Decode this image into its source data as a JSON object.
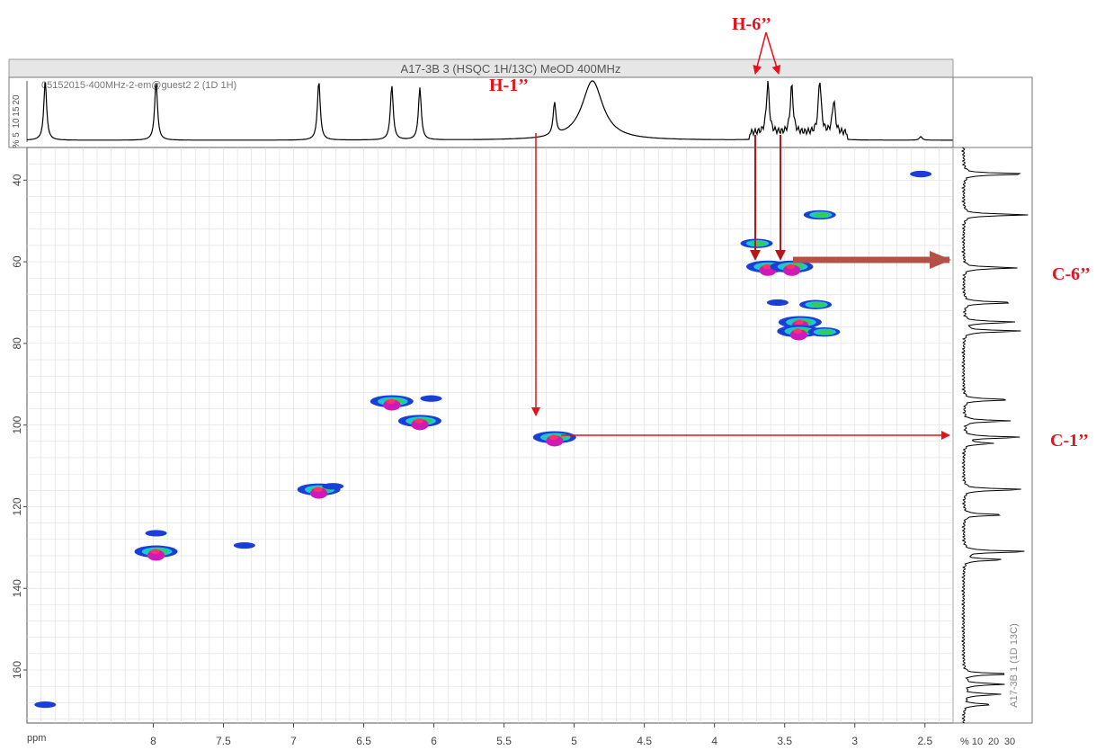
{
  "window": {
    "title": "A17-3B 3 (HSQC 1H/13C) MeOD 400MHz",
    "top_trace_label": "05152015-400MHz-2-em@guest2 2 (1D 1H)",
    "side_trace_label": "A17-3B 1 (1D 13C)"
  },
  "colors": {
    "annotation": "#e8111b",
    "arrow_dark": "#b01a1a",
    "arrow_c6": "#b55045",
    "grid": "#dddddd",
    "contour_blue": "#1a3fd6",
    "contour_cyan": "#1ec8d0",
    "contour_green": "#33cc55",
    "contour_magenta": "#d01ab8",
    "contour_pink": "#ff3070"
  },
  "annotations": [
    {
      "id": "h1",
      "text": "H-1’’"
    },
    {
      "id": "h6",
      "text": "H-6’’"
    },
    {
      "id": "c6",
      "text": "C-6’’"
    },
    {
      "id": "c1",
      "text": "C-1’’"
    }
  ],
  "chart_data": {
    "type": "heatmap",
    "title": "A17-3B 3 (HSQC 1H/13C) MeOD 400MHz",
    "xlabel": "ppm",
    "ylabel": "ppm",
    "x_range": [
      8.9,
      2.3
    ],
    "y_range": [
      32,
      173
    ],
    "x_ticks": [
      "8",
      "7.5",
      "7",
      "6.5",
      "6",
      "5.5",
      "5",
      "4.5",
      "4",
      "3.5",
      "3",
      "2.5"
    ],
    "y_ticks": [
      "40",
      "60",
      "80",
      "100",
      "120",
      "140",
      "160"
    ],
    "top_axis_ticks": [
      "5",
      "10",
      "15",
      "20"
    ],
    "top_axis_unit": "%",
    "side_axis_ticks": [
      "10",
      "20",
      "30"
    ],
    "side_axis_unit": "%",
    "grid": true,
    "cross_peaks": [
      {
        "h": 8.77,
        "c": 168.5,
        "intensity": 1
      },
      {
        "h": 7.98,
        "c": 131.0,
        "intensity": 3
      },
      {
        "h": 7.98,
        "c": 126.5,
        "intensity": 1
      },
      {
        "h": 7.35,
        "c": 129.5,
        "intensity": 1
      },
      {
        "h": 6.82,
        "c": 115.8,
        "intensity": 3
      },
      {
        "h": 6.72,
        "c": 115.0,
        "intensity": 1
      },
      {
        "h": 6.3,
        "c": 94.2,
        "intensity": 3
      },
      {
        "h": 6.02,
        "c": 93.5,
        "intensity": 1
      },
      {
        "h": 6.1,
        "c": 99.0,
        "intensity": 3
      },
      {
        "h": 5.14,
        "c": 103.0,
        "intensity": 3
      },
      {
        "h": 2.53,
        "c": 38.5,
        "intensity": 1
      },
      {
        "h": 3.25,
        "c": 48.5,
        "intensity": 2
      },
      {
        "h": 3.7,
        "c": 55.5,
        "intensity": 2
      },
      {
        "h": 3.62,
        "c": 61.2,
        "intensity": 3
      },
      {
        "h": 3.45,
        "c": 61.2,
        "intensity": 3
      },
      {
        "h": 3.55,
        "c": 70.0,
        "intensity": 1
      },
      {
        "h": 3.28,
        "c": 70.5,
        "intensity": 2
      },
      {
        "h": 3.39,
        "c": 74.8,
        "intensity": 3
      },
      {
        "h": 3.4,
        "c": 77.0,
        "intensity": 3
      },
      {
        "h": 3.22,
        "c": 77.2,
        "intensity": 2
      }
    ],
    "top_projection_peaks": [
      {
        "x": 8.77,
        "height": 1.0
      },
      {
        "x": 7.98,
        "height": 1.0
      },
      {
        "x": 6.82,
        "height": 1.0
      },
      {
        "x": 6.3,
        "height": 0.92
      },
      {
        "x": 6.1,
        "height": 0.88
      },
      {
        "x": 5.14,
        "height": 0.55
      },
      {
        "x": 4.87,
        "height": 1.0
      },
      {
        "x": 3.62,
        "height": 0.85
      },
      {
        "x": 3.45,
        "height": 0.8
      },
      {
        "x": 3.25,
        "height": 0.9
      },
      {
        "x": 3.15,
        "height": 0.55
      },
      {
        "x": 2.53,
        "height": 0.06
      }
    ],
    "side_projection_peaks": [
      {
        "c": 38.5,
        "width": 1.0
      },
      {
        "c": 48.5,
        "width": 1.0
      },
      {
        "c": 61.5,
        "width": 0.82
      },
      {
        "c": 70.0,
        "width": 0.8
      },
      {
        "c": 74.8,
        "width": 0.82
      },
      {
        "c": 77.0,
        "width": 0.88
      },
      {
        "c": 93.8,
        "width": 0.75
      },
      {
        "c": 99.0,
        "width": 0.7
      },
      {
        "c": 103.0,
        "width": 0.88
      },
      {
        "c": 104.5,
        "width": 0.45
      },
      {
        "c": 115.8,
        "width": 0.95
      },
      {
        "c": 122.0,
        "width": 0.62
      },
      {
        "c": 131.0,
        "width": 1.0
      },
      {
        "c": 133.0,
        "width": 0.62
      },
      {
        "c": 161.0,
        "width": 0.72
      },
      {
        "c": 163.5,
        "width": 0.62
      },
      {
        "c": 166.0,
        "width": 0.58
      },
      {
        "c": 168.5,
        "width": 0.45
      }
    ]
  }
}
